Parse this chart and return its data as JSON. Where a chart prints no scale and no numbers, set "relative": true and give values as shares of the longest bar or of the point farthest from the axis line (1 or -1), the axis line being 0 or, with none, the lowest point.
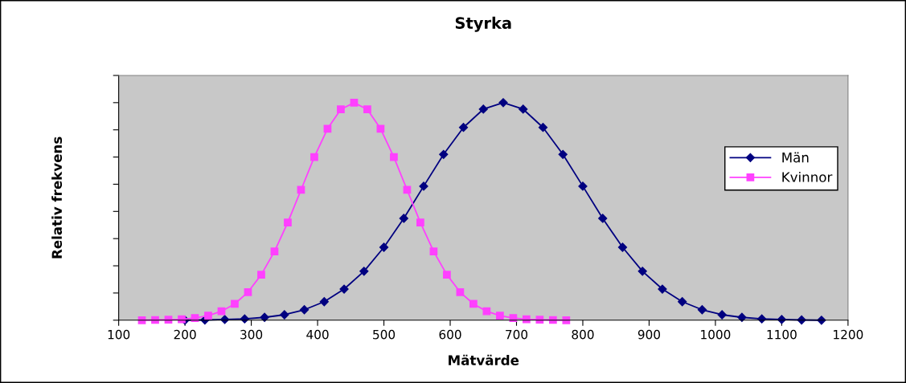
{
  "chart_data": {
    "type": "line",
    "title": "Styrka",
    "xlabel": "Mätvärde",
    "ylabel": "Relativ frekvens",
    "relative": true,
    "xlim": [
      100,
      1200
    ],
    "xticks": [
      100,
      200,
      300,
      400,
      500,
      600,
      700,
      800,
      900,
      1000,
      1100,
      1200
    ],
    "legend": "right",
    "grid": false,
    "line_style": "solid",
    "series": [
      {
        "name": "Män",
        "color": "#000080",
        "marker": "diamond",
        "x": [
          200,
          230,
          260,
          290,
          320,
          350,
          380,
          410,
          440,
          470,
          500,
          530,
          560,
          590,
          620,
          650,
          680,
          710,
          740,
          770,
          800,
          830,
          860,
          890,
          920,
          950,
          980,
          1010,
          1040,
          1070,
          1100,
          1130,
          1160
        ],
        "values": [
          0.0,
          0.001,
          0.003,
          0.006,
          0.013,
          0.025,
          0.048,
          0.085,
          0.143,
          0.225,
          0.335,
          0.468,
          0.616,
          0.762,
          0.886,
          0.97,
          1.0,
          0.97,
          0.886,
          0.762,
          0.616,
          0.468,
          0.335,
          0.225,
          0.143,
          0.085,
          0.048,
          0.025,
          0.013,
          0.006,
          0.003,
          0.001,
          0.0
        ]
      },
      {
        "name": "Kvinnor",
        "color": "#ff40ff",
        "marker": "square",
        "x": [
          135,
          155,
          175,
          195,
          215,
          235,
          255,
          275,
          295,
          315,
          335,
          355,
          375,
          395,
          415,
          435,
          455,
          475,
          495,
          515,
          535,
          555,
          575,
          595,
          615,
          635,
          655,
          675,
          695,
          715,
          735,
          755,
          775
        ],
        "values": [
          0.0,
          0.001,
          0.002,
          0.004,
          0.01,
          0.021,
          0.041,
          0.075,
          0.129,
          0.209,
          0.316,
          0.449,
          0.599,
          0.75,
          0.88,
          0.969,
          1.0,
          0.969,
          0.88,
          0.75,
          0.599,
          0.449,
          0.316,
          0.209,
          0.129,
          0.075,
          0.041,
          0.021,
          0.01,
          0.004,
          0.002,
          0.001,
          0.0
        ]
      }
    ]
  }
}
